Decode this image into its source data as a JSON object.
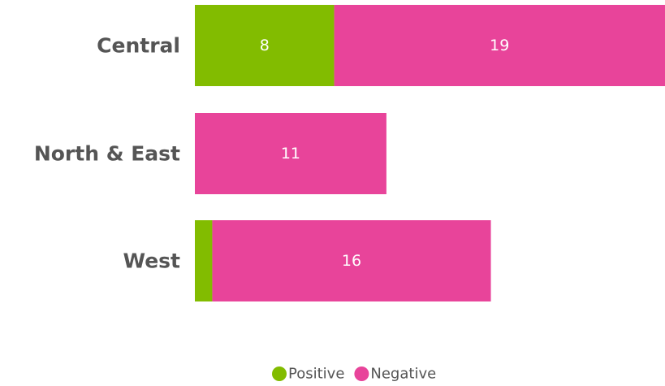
{
  "chart_data": {
    "type": "bar",
    "orientation": "horizontal",
    "stacked": true,
    "categories": [
      "Central",
      "North & East",
      "West"
    ],
    "series": [
      {
        "name": "Positive",
        "color": "#82bc00",
        "values": [
          8,
          0,
          1
        ]
      },
      {
        "name": "Negative",
        "color": "#e8449a",
        "values": [
          19,
          11,
          16
        ]
      }
    ],
    "data_labels": [
      [
        "8",
        "19"
      ],
      [
        "",
        "11"
      ],
      [
        "",
        "16"
      ]
    ],
    "xlim": [
      0,
      27
    ],
    "grid": false,
    "legend_position": "bottom"
  }
}
